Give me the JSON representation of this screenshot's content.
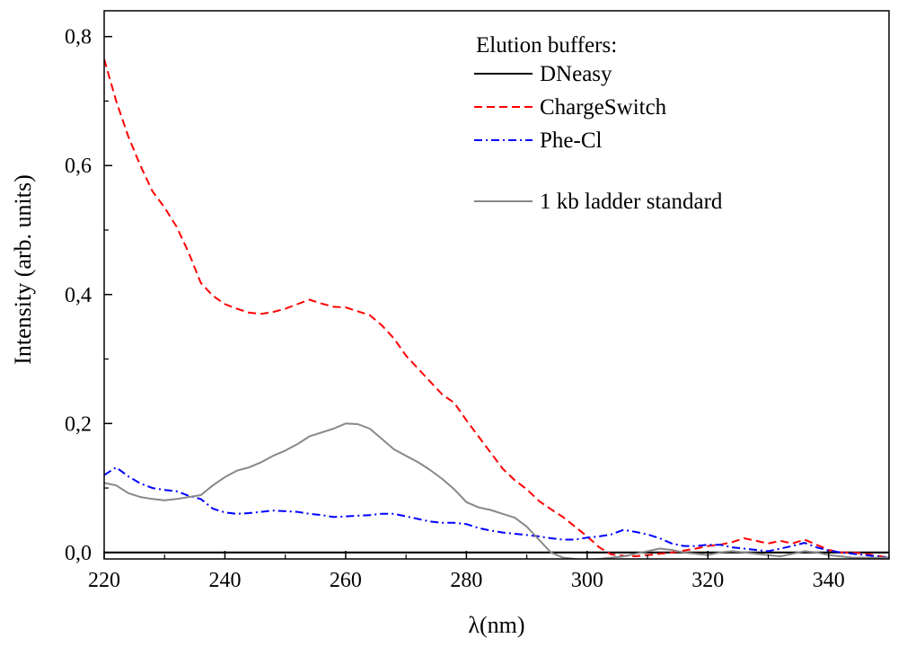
{
  "chart_data": {
    "type": "line",
    "title": "",
    "xlabel": "λ(nm)",
    "ylabel": "Intensity (arb. units)",
    "xlim": [
      220,
      350
    ],
    "ylim": [
      -0.01,
      0.84
    ],
    "xticks": [
      220,
      240,
      260,
      280,
      300,
      320,
      340
    ],
    "xtick_labels": [
      "220",
      "240",
      "260",
      "280",
      "300",
      "320",
      "340"
    ],
    "yticks": [
      0.0,
      0.2,
      0.4,
      0.6,
      0.8
    ],
    "ytick_labels": [
      "0,0",
      "0,2",
      "0,4",
      "0,6",
      "0,8"
    ],
    "grid": false,
    "legend": {
      "title": "Elution buffers:",
      "placement": "top-right"
    },
    "series": [
      {
        "name": "DNeasy",
        "color": "#000000",
        "style": "solid",
        "x": [
          220,
          350
        ],
        "y": [
          0.0,
          0.0
        ]
      },
      {
        "name": "ChargeSwitch",
        "color": "#ff0000",
        "style": "dashed",
        "x": [
          220,
          222,
          224,
          226,
          228,
          230,
          232,
          234,
          236,
          238,
          240,
          242,
          244,
          246,
          248,
          250,
          252,
          254,
          256,
          258,
          260,
          262,
          264,
          266,
          268,
          270,
          272,
          274,
          276,
          278,
          280,
          282,
          284,
          286,
          288,
          290,
          292,
          294,
          296,
          298,
          300,
          302,
          304,
          306,
          308,
          310,
          312,
          314,
          316,
          318,
          320,
          322,
          324,
          326,
          328,
          330,
          332,
          334,
          336,
          338,
          340,
          342,
          344,
          346,
          348,
          350
        ],
        "y": [
          0.765,
          0.7,
          0.645,
          0.6,
          0.56,
          0.535,
          0.505,
          0.465,
          0.418,
          0.398,
          0.385,
          0.378,
          0.372,
          0.37,
          0.373,
          0.378,
          0.385,
          0.392,
          0.386,
          0.381,
          0.38,
          0.374,
          0.368,
          0.352,
          0.332,
          0.305,
          0.285,
          0.265,
          0.245,
          0.232,
          0.205,
          0.18,
          0.155,
          0.13,
          0.112,
          0.098,
          0.08,
          0.067,
          0.055,
          0.04,
          0.025,
          0.008,
          -0.003,
          -0.005,
          -0.006,
          -0.004,
          -0.002,
          0.0,
          0.003,
          0.006,
          0.01,
          0.012,
          0.016,
          0.022,
          0.018,
          0.014,
          0.018,
          0.014,
          0.02,
          0.012,
          0.004,
          0.0,
          0.0,
          -0.002,
          -0.005,
          -0.008
        ]
      },
      {
        "name": "Phe-Cl",
        "color": "#0000ff",
        "style": "dashdot",
        "x": [
          220,
          222,
          224,
          226,
          228,
          230,
          232,
          234,
          236,
          238,
          240,
          242,
          244,
          246,
          248,
          250,
          252,
          254,
          256,
          258,
          260,
          262,
          264,
          266,
          268,
          270,
          272,
          274,
          276,
          278,
          280,
          282,
          284,
          286,
          288,
          290,
          292,
          294,
          296,
          298,
          300,
          302,
          304,
          306,
          308,
          310,
          312,
          314,
          316,
          318,
          320,
          322,
          324,
          326,
          328,
          330,
          332,
          334,
          336,
          338,
          340,
          342,
          344,
          346,
          348,
          350
        ],
        "y": [
          0.12,
          0.132,
          0.118,
          0.107,
          0.1,
          0.097,
          0.095,
          0.088,
          0.083,
          0.068,
          0.062,
          0.06,
          0.061,
          0.063,
          0.065,
          0.064,
          0.063,
          0.06,
          0.058,
          0.055,
          0.056,
          0.057,
          0.058,
          0.06,
          0.06,
          0.056,
          0.052,
          0.048,
          0.046,
          0.046,
          0.044,
          0.038,
          0.034,
          0.031,
          0.029,
          0.027,
          0.025,
          0.022,
          0.02,
          0.02,
          0.023,
          0.025,
          0.028,
          0.035,
          0.032,
          0.028,
          0.022,
          0.014,
          0.01,
          0.01,
          0.012,
          0.012,
          0.008,
          0.006,
          0.004,
          0.002,
          0.006,
          0.01,
          0.015,
          0.008,
          0.003,
          0.0,
          -0.002,
          -0.004,
          -0.006,
          -0.008
        ]
      },
      {
        "name": "1 kb ladder standard",
        "color": "#888888",
        "style": "solid",
        "x": [
          220,
          222,
          224,
          226,
          228,
          230,
          232,
          234,
          236,
          238,
          240,
          242,
          244,
          246,
          248,
          250,
          252,
          254,
          256,
          258,
          260,
          262,
          264,
          266,
          268,
          270,
          272,
          274,
          276,
          278,
          280,
          282,
          284,
          286,
          288,
          290,
          292,
          294,
          296,
          298,
          300,
          302,
          304,
          306,
          308,
          310,
          312,
          314,
          316,
          318,
          320,
          322,
          324,
          326,
          328,
          330,
          332,
          334,
          336,
          338,
          340,
          342,
          344,
          346,
          348,
          350
        ],
        "y": [
          0.108,
          0.104,
          0.092,
          0.086,
          0.083,
          0.081,
          0.083,
          0.086,
          0.089,
          0.104,
          0.117,
          0.127,
          0.132,
          0.14,
          0.15,
          0.158,
          0.168,
          0.18,
          0.186,
          0.192,
          0.2,
          0.199,
          0.192,
          0.176,
          0.16,
          0.15,
          0.14,
          0.128,
          0.114,
          0.098,
          0.078,
          0.07,
          0.066,
          0.06,
          0.054,
          0.04,
          0.02,
          0.0,
          -0.008,
          -0.01,
          -0.012,
          -0.01,
          -0.008,
          -0.006,
          -0.002,
          0.002,
          0.006,
          0.004,
          0.0,
          -0.002,
          -0.004,
          0.0,
          0.002,
          0.0,
          -0.002,
          -0.004,
          -0.006,
          -0.002,
          0.002,
          0.0,
          -0.004,
          -0.006,
          -0.008,
          -0.008,
          -0.008,
          -0.008
        ]
      }
    ]
  }
}
